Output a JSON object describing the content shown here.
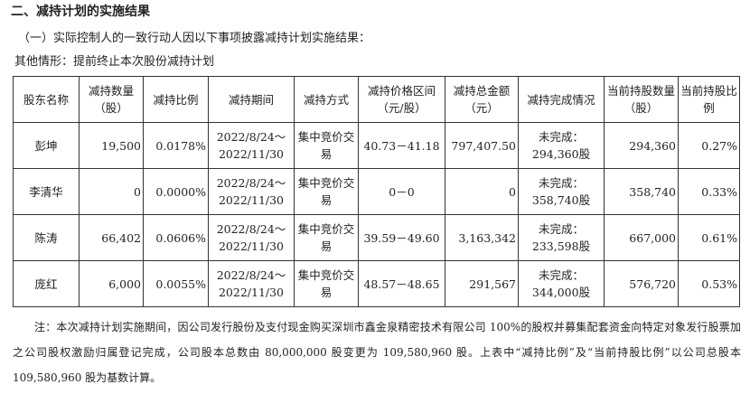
{
  "heading": "二、减持计划的实施结果",
  "subheading": "（一）实际控制人的一致行动人因以下事项披露减持计划实施结果：",
  "other": "其他情形：提前终止本次股份减持计划",
  "columns": [
    "股东名称",
    "减持数量（股）",
    "减持比例",
    "减持期间",
    "减持方式",
    "减持价格区间（元/股）",
    "减持总金额（元）",
    "减持完成情况",
    "当前持股数量（股）",
    "当前持股比例"
  ],
  "rows": [
    {
      "name": "彭坤",
      "qty": "19,500",
      "ratio": "0.0178%",
      "period": "2022/8/24～2022/11/30",
      "method": "集中竞价交易",
      "price": "40.73－41.18",
      "amount": "797,407.50",
      "status": "未完成：294,360股",
      "held": "294,360",
      "held_ratio": "0.27%"
    },
    {
      "name": "李清华",
      "qty": "0",
      "ratio": "0.0000%",
      "period": "2022/8/24～2022/11/30",
      "method": "集中竞价交易",
      "price": "0－0",
      "amount": "0",
      "status": "未完成：358,740股",
      "held": "358,740",
      "held_ratio": "0.33%"
    },
    {
      "name": "陈涛",
      "qty": "66,402",
      "ratio": "0.0606%",
      "period": "2022/8/24～2022/11/30",
      "method": "集中竞价交易",
      "price": "39.59－49.60",
      "amount": "3,163,342",
      "status": "未完成：233,598股",
      "held": "667,000",
      "held_ratio": "0.61%"
    },
    {
      "name": "庞红",
      "qty": "6,000",
      "ratio": "0.0055%",
      "period": "2022/8/24～2022/11/30",
      "method": "集中竞价交易",
      "price": "48.57－48.65",
      "amount": "291,567",
      "status": "未完成：344,000股",
      "held": "576,720",
      "held_ratio": "0.53%"
    }
  ],
  "note": "注：本次减持计划实施期间，因公司发行股份及支付现金购买深圳市鑫金泉精密技术有限公司 100%的股权并募集配套资金向特定对象发行股票加之公司股权激励归属登记完成，公司股本总数由 80,000,000 股变更为 109,580,960 股。上表中“减持比例”及“当前持股比例”以公司总股本 109,580,960 股为基数计算。"
}
